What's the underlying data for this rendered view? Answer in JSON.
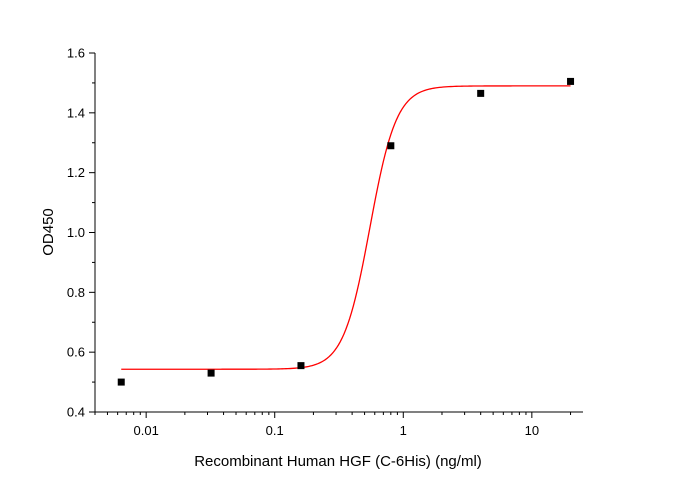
{
  "chart_data": {
    "type": "scatter",
    "xlabel": "Recombinant Human HGF (C-6His) (ng/ml)",
    "ylabel": "OD450",
    "x_scale": "log",
    "xlim": [
      0.004,
      25
    ],
    "ylim": [
      0.4,
      1.6
    ],
    "x_ticks": [
      0.01,
      0.1,
      1,
      10
    ],
    "x_tick_labels": [
      "0.01",
      "0.1",
      "1",
      "10"
    ],
    "y_ticks": [
      0.4,
      0.6,
      0.8,
      1.0,
      1.2,
      1.4,
      1.6
    ],
    "y_tick_labels": [
      "0.4",
      "0.6",
      "0.8",
      "1.0",
      "1.2",
      "1.4",
      "1.6"
    ],
    "grid": false,
    "legend": "none",
    "series": [
      {
        "type": "scatter",
        "color": "#000000",
        "marker": "square",
        "x": [
          0.0064,
          0.032,
          0.16,
          0.8,
          4,
          20
        ],
        "y": [
          0.5,
          0.53,
          0.555,
          1.29,
          1.465,
          1.505
        ]
      },
      {
        "type": "line",
        "color": "#ff0000",
        "fit": "four-parameter-logistic",
        "x_start": 0.0064,
        "x_end": 20,
        "bottom": 0.543,
        "top": 1.49,
        "ec50": 0.55,
        "hill": 4.2
      }
    ]
  }
}
